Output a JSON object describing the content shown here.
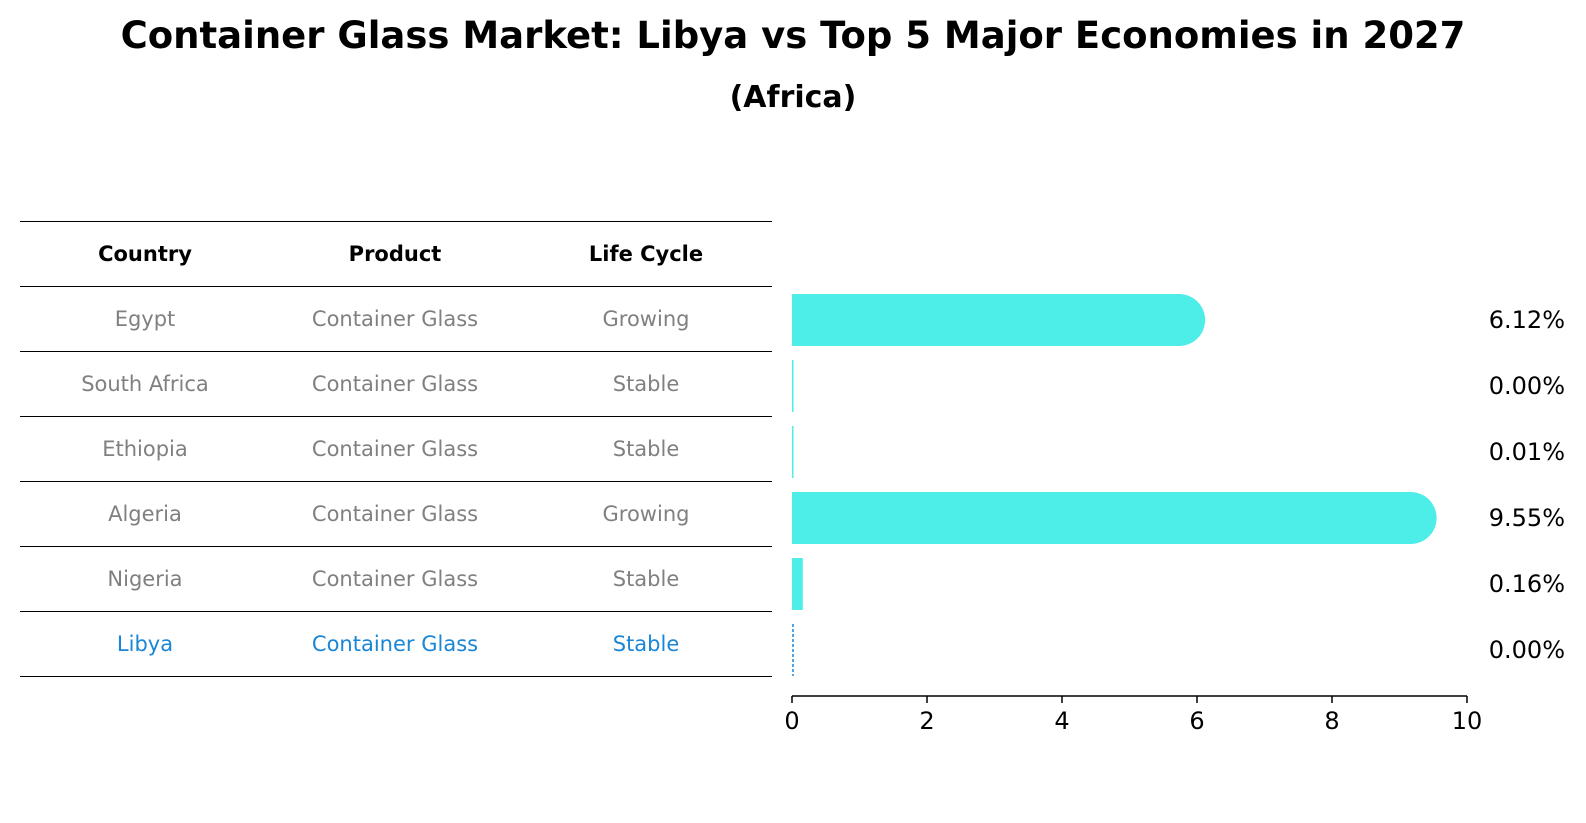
{
  "chart_data": {
    "type": "bar",
    "orientation": "horizontal",
    "title": "Container Glass Market: Libya vs Top 5 Major Economies in 2027",
    "subtitle": "(Africa)",
    "table": {
      "columns": [
        "Country",
        "Product",
        "Life Cycle"
      ],
      "rows": [
        {
          "country": "Egypt",
          "product": "Container Glass",
          "cycle": "Growing"
        },
        {
          "country": "South Africa",
          "product": "Container Glass",
          "cycle": "Stable"
        },
        {
          "country": "Ethiopia",
          "product": "Container Glass",
          "cycle": "Stable"
        },
        {
          "country": "Algeria",
          "product": "Container Glass",
          "cycle": "Growing"
        },
        {
          "country": "Nigeria",
          "product": "Container Glass",
          "cycle": "Stable"
        },
        {
          "country": "Libya",
          "product": "Container Glass",
          "cycle": "Stable"
        }
      ]
    },
    "categories": [
      "Egypt",
      "South Africa",
      "Ethiopia",
      "Algeria",
      "Nigeria",
      "Libya"
    ],
    "values": [
      6.12,
      0.0,
      0.01,
      9.55,
      0.16,
      0.0
    ],
    "value_labels": [
      "6.12%",
      "0.00%",
      "0.01%",
      "9.55%",
      "0.16%",
      "0.00%"
    ],
    "highlight": "Libya",
    "xlim": [
      0,
      10
    ],
    "xticks": [
      0,
      2,
      4,
      6,
      8,
      10
    ],
    "grid": false,
    "colors": {
      "bar": "#4deee8",
      "highlight": "#1a86d6",
      "muted": "#808080"
    }
  }
}
